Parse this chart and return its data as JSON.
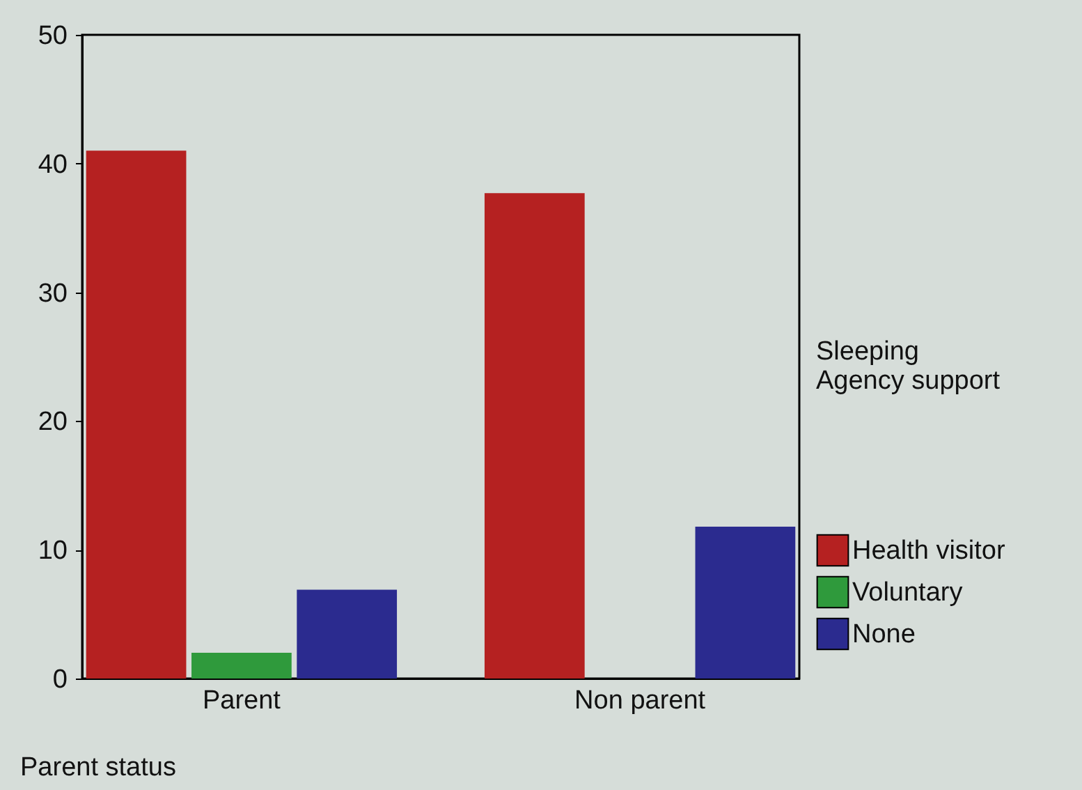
{
  "chart_data": {
    "type": "bar",
    "xlabel": "Parent status",
    "legend_title": "Sleeping\nAgency support",
    "categories": [
      "Parent",
      "Non parent"
    ],
    "series": [
      {
        "name": "Health visitor",
        "color": "#b52121",
        "values": [
          41,
          37.7
        ]
      },
      {
        "name": "Voluntary",
        "color": "#2f9a3c",
        "values": [
          2,
          0
        ]
      },
      {
        "name": "None",
        "color": "#2b2b8f",
        "values": [
          6.9,
          11.8
        ]
      }
    ],
    "ylim": [
      0,
      50
    ],
    "yticks": [
      0,
      10,
      20,
      30,
      40,
      50
    ],
    "grid": false,
    "legend": "right"
  }
}
